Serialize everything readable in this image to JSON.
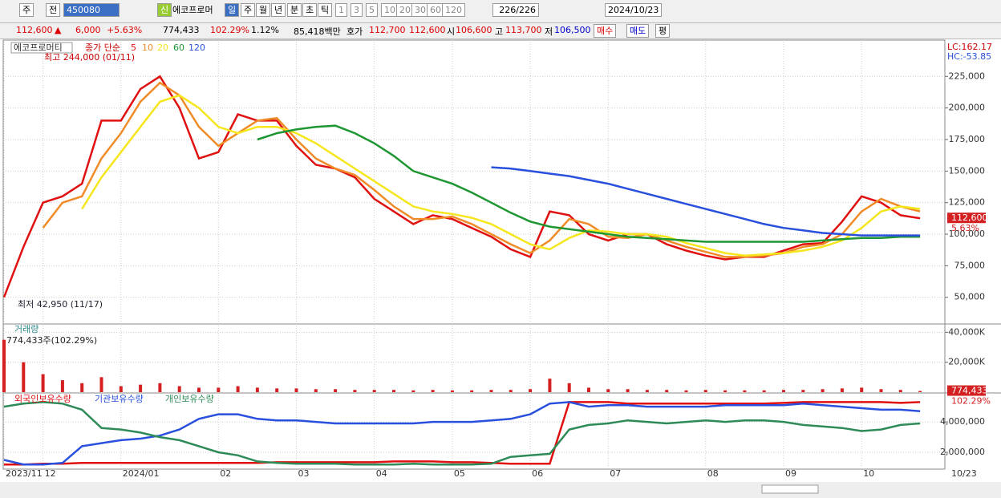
{
  "toolbar": {
    "items": [
      "주",
      "전",
      "450080",
      "신",
      "에코프로머",
      "일",
      "주",
      "월",
      "년",
      "분",
      "초",
      "틱",
      "1",
      "3",
      "5",
      "10",
      "20",
      "30",
      "60",
      "120",
      "226/226",
      "2024/10/23"
    ]
  },
  "info_bar": {
    "price": "112,600",
    "arrow": "▲",
    "change": "6,000",
    "change_rate": "+5.63%",
    "volume": "774,433",
    "volume_rate": "102.29%",
    "turnover": "1.12%",
    "amount": "85,418백만",
    "ask_label": "호가",
    "ask": "112,700",
    "bid": "112,600",
    "open_label": "시",
    "open": "106,600",
    "high_label": "고",
    "high": "113,700",
    "low_label": "저",
    "low": "106,500",
    "buy": "매수",
    "sell": "매도",
    "avg": "평"
  },
  "chart_data": [
    {
      "type": "line",
      "title": "에코프로머티",
      "subtitle": "종가 단순",
      "x_end_label": "10/23",
      "categories": [
        "2023/11",
        null,
        "12",
        null,
        null,
        null,
        "2024/01",
        null,
        null,
        null,
        null,
        "02",
        null,
        null,
        null,
        "03",
        null,
        null,
        null,
        "04",
        null,
        null,
        null,
        "05",
        null,
        null,
        null,
        "06",
        null,
        null,
        null,
        "07",
        null,
        null,
        null,
        null,
        "08",
        null,
        null,
        null,
        "09",
        null,
        null,
        null,
        "10",
        null,
        null,
        null
      ],
      "ylim": [
        29500,
        252500
      ],
      "yticks": [
        {
          "value": 50000,
          "label": "50,000"
        },
        {
          "value": 75000,
          "label": "75,000"
        },
        {
          "value": 100000,
          "label": "100,000"
        },
        {
          "value": 125000,
          "label": "125,000"
        },
        {
          "value": 150000,
          "label": "150,000"
        },
        {
          "value": 175000,
          "label": "175,000"
        },
        {
          "value": 200000,
          "label": "200,000"
        },
        {
          "value": 225000,
          "label": "225,000"
        }
      ],
      "grid": true,
      "annotations": [
        "최고 244,000 (01/11)",
        "최저 42,950 (11/17)"
      ],
      "corner_labels": [
        "LC:162.17",
        "HC:-53.85"
      ],
      "last_value": {
        "value": 112600,
        "label": "112,600"
      },
      "last_rate": "5.63%",
      "series": [
        {
          "name": "5",
          "color": "#e01010",
          "values": [
            50000,
            90000,
            125000,
            130000,
            140000,
            190000,
            190000,
            215000,
            225000,
            200000,
            160000,
            165000,
            195000,
            190000,
            190000,
            170000,
            155000,
            152000,
            145000,
            128000,
            118000,
            108000,
            115000,
            112000,
            105000,
            98000,
            88000,
            82000,
            118000,
            115000,
            100000,
            95000,
            100000,
            100000,
            92000,
            87000,
            83000,
            80000,
            82000,
            82000,
            87000,
            92000,
            93000,
            110000,
            130000,
            125000,
            115000,
            112600
          ]
        },
        {
          "name": "10",
          "color": "#f08c28",
          "values": [
            null,
            null,
            105000,
            125000,
            130000,
            160000,
            180000,
            205000,
            220000,
            210000,
            185000,
            170000,
            180000,
            190000,
            192000,
            175000,
            160000,
            152000,
            147000,
            135000,
            122000,
            112000,
            112000,
            114000,
            108000,
            100000,
            92000,
            85000,
            95000,
            112000,
            108000,
            98000,
            97000,
            100000,
            95000,
            90000,
            86000,
            82000,
            82000,
            83000,
            85000,
            90000,
            92000,
            100000,
            118000,
            128000,
            122000,
            118000
          ]
        },
        {
          "name": "20",
          "color": "#f5e61e",
          "values": [
            null,
            null,
            null,
            null,
            120000,
            145000,
            165000,
            185000,
            205000,
            210000,
            200000,
            185000,
            180000,
            185000,
            185000,
            180000,
            172000,
            162000,
            152000,
            142000,
            132000,
            122000,
            118000,
            116000,
            113000,
            108000,
            100000,
            92000,
            88000,
            97000,
            103000,
            102000,
            100000,
            100000,
            98000,
            93000,
            89000,
            85000,
            83000,
            84000,
            85000,
            87000,
            90000,
            95000,
            105000,
            118000,
            122000,
            120000
          ]
        },
        {
          "name": "60",
          "color": "#1e9632",
          "values": [
            null,
            null,
            null,
            null,
            null,
            null,
            null,
            null,
            null,
            null,
            null,
            null,
            null,
            175000,
            180000,
            183000,
            185000,
            186000,
            180000,
            172000,
            162000,
            150000,
            145000,
            140000,
            133000,
            125000,
            117000,
            110000,
            106000,
            104000,
            102000,
            100000,
            98000,
            97000,
            96000,
            95000,
            94000,
            94000,
            94000,
            94000,
            94000,
            94000,
            95000,
            96000,
            97000,
            97000,
            98000,
            98000
          ]
        },
        {
          "name": "120",
          "color": "#2850dc",
          "values": [
            null,
            null,
            null,
            null,
            null,
            null,
            null,
            null,
            null,
            null,
            null,
            null,
            null,
            null,
            null,
            null,
            null,
            null,
            null,
            null,
            null,
            null,
            null,
            null,
            null,
            153000,
            152000,
            150000,
            148000,
            146000,
            143000,
            140000,
            136000,
            132000,
            128000,
            124000,
            120000,
            116000,
            112000,
            108000,
            105000,
            103000,
            101000,
            100000,
            99000,
            99000,
            99000,
            99000
          ]
        }
      ]
    },
    {
      "type": "bar",
      "title": "거래량",
      "subtitle": "774,433주(102.29%)",
      "color": "#d42020",
      "ylim": [
        0,
        45000
      ],
      "yticks": [
        {
          "value": 20000,
          "label": "20,000K"
        },
        {
          "value": 40000,
          "label": "40,000K"
        }
      ],
      "grid": true,
      "last_value": {
        "value": 774.433,
        "label": "774,433"
      },
      "last_rate": "102.29%",
      "values": [
        35000,
        20000,
        12000,
        8000,
        6000,
        10000,
        4000,
        5000,
        6000,
        4000,
        3000,
        3000,
        4000,
        3000,
        2500,
        2500,
        2000,
        2000,
        1500,
        1500,
        1500,
        1200,
        1500,
        1200,
        1200,
        1500,
        1500,
        2000,
        9000,
        6000,
        3000,
        2000,
        2000,
        1500,
        1500,
        1200,
        1500,
        1200,
        1200,
        1200,
        1500,
        1500,
        2000,
        2500,
        3000,
        2000,
        1500,
        774.433
      ]
    },
    {
      "type": "line",
      "ylim": [
        1000000,
        5850000
      ],
      "yticks": [
        {
          "value": 2000000,
          "label": "2,000,000"
        },
        {
          "value": 4000000,
          "label": "4,000,000"
        }
      ],
      "grid": true,
      "series": [
        {
          "name": "외국인보유수량",
          "color": "#e01010",
          "values": [
            1200000,
            1200000,
            1250000,
            1250000,
            1300000,
            1300000,
            1300000,
            1300000,
            1300000,
            1300000,
            1300000,
            1300000,
            1300000,
            1300000,
            1350000,
            1350000,
            1350000,
            1350000,
            1350000,
            1350000,
            1400000,
            1400000,
            1400000,
            1350000,
            1350000,
            1300000,
            1250000,
            1250000,
            1250000,
            5300000,
            5300000,
            5300000,
            5200000,
            5200000,
            5200000,
            5200000,
            5200000,
            5200000,
            5200000,
            5200000,
            5250000,
            5300000,
            5300000,
            5300000,
            5300000,
            5300000,
            5250000,
            5300000
          ]
        },
        {
          "name": "기관보유수량",
          "color": "#2850dc",
          "values": [
            1500000,
            1200000,
            1200000,
            1300000,
            2400000,
            2600000,
            2800000,
            2900000,
            3100000,
            3500000,
            4200000,
            4500000,
            4500000,
            4200000,
            4100000,
            4100000,
            4000000,
            3900000,
            3900000,
            3900000,
            3900000,
            3900000,
            4000000,
            4000000,
            4000000,
            4100000,
            4200000,
            4500000,
            5200000,
            5300000,
            5000000,
            5100000,
            5100000,
            5000000,
            5000000,
            5000000,
            5000000,
            5100000,
            5100000,
            5100000,
            5100000,
            5200000,
            5100000,
            5000000,
            4900000,
            4800000,
            4800000,
            4700000
          ]
        },
        {
          "name": "개인보유수량",
          "color": "#2e8b57",
          "values": [
            5000000,
            5200000,
            5300000,
            5200000,
            4800000,
            3600000,
            3500000,
            3300000,
            3000000,
            2800000,
            2400000,
            2000000,
            1800000,
            1400000,
            1300000,
            1250000,
            1250000,
            1250000,
            1200000,
            1200000,
            1200000,
            1250000,
            1200000,
            1200000,
            1200000,
            1250000,
            1700000,
            1800000,
            1900000,
            3500000,
            3800000,
            3900000,
            4100000,
            4000000,
            3900000,
            4000000,
            4100000,
            4000000,
            4100000,
            4100000,
            4000000,
            3800000,
            3700000,
            3600000,
            3400000,
            3500000,
            3800000,
            3900000
          ]
        }
      ]
    }
  ]
}
